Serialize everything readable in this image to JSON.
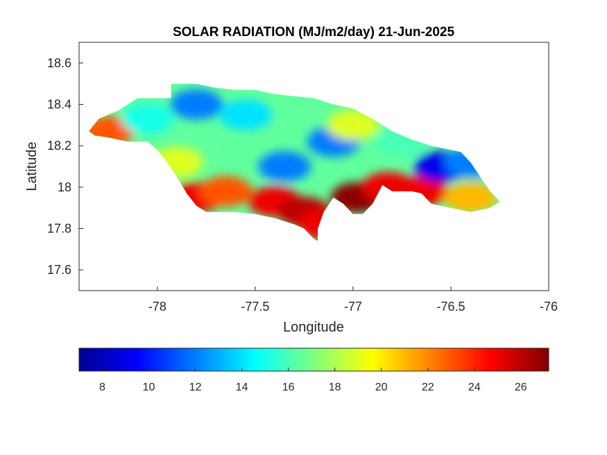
{
  "chart_data": {
    "type": "heatmap",
    "title": "SOLAR RADIATION (MJ/m2/day) 21-Jun-2025",
    "xlabel": "Longitude",
    "ylabel": "Latitude",
    "xlim": [
      -78.4,
      -76.0
    ],
    "ylim": [
      17.5,
      18.7
    ],
    "xticks": [
      -78,
      -77.5,
      -77,
      -76.5,
      -76
    ],
    "yticks": [
      17.6,
      17.8,
      18,
      18.2,
      18.4,
      18.6
    ],
    "grid": false,
    "colormap": "jet",
    "colorbar": {
      "location": "below",
      "limits": [
        7,
        27.2
      ],
      "ticks": [
        8,
        10,
        12,
        14,
        16,
        18,
        20,
        22,
        24,
        26
      ],
      "colors": [
        "#00008f",
        "#0000ff",
        "#00ffff",
        "#ffff00",
        "#ff0000",
        "#800000"
      ]
    },
    "region_outline": [
      [
        -78.35,
        18.27
      ],
      [
        -78.3,
        18.33
      ],
      [
        -78.25,
        18.35
      ],
      [
        -78.2,
        18.37
      ],
      [
        -78.1,
        18.43
      ],
      [
        -78.0,
        18.43
      ],
      [
        -77.93,
        18.43
      ],
      [
        -77.93,
        18.5
      ],
      [
        -77.8,
        18.5
      ],
      [
        -77.7,
        18.48
      ],
      [
        -77.6,
        18.47
      ],
      [
        -77.5,
        18.47
      ],
      [
        -77.4,
        18.45
      ],
      [
        -77.3,
        18.44
      ],
      [
        -77.2,
        18.43
      ],
      [
        -77.1,
        18.4
      ],
      [
        -77.0,
        18.38
      ],
      [
        -76.9,
        18.33
      ],
      [
        -76.8,
        18.27
      ],
      [
        -76.7,
        18.23
      ],
      [
        -76.6,
        18.2
      ],
      [
        -76.5,
        18.18
      ],
      [
        -76.45,
        18.17
      ],
      [
        -76.4,
        18.12
      ],
      [
        -76.35,
        18.05
      ],
      [
        -76.3,
        17.98
      ],
      [
        -76.25,
        17.93
      ],
      [
        -76.3,
        17.9
      ],
      [
        -76.4,
        17.88
      ],
      [
        -76.5,
        17.9
      ],
      [
        -76.6,
        17.92
      ],
      [
        -76.65,
        17.97
      ],
      [
        -76.7,
        17.98
      ],
      [
        -76.8,
        17.98
      ],
      [
        -76.85,
        18.01
      ],
      [
        -76.9,
        17.92
      ],
      [
        -76.95,
        17.87
      ],
      [
        -77.0,
        17.87
      ],
      [
        -77.05,
        17.92
      ],
      [
        -77.1,
        17.95
      ],
      [
        -77.15,
        17.88
      ],
      [
        -77.18,
        17.8
      ],
      [
        -77.18,
        17.74
      ],
      [
        -77.2,
        17.75
      ],
      [
        -77.25,
        17.8
      ],
      [
        -77.3,
        17.82
      ],
      [
        -77.4,
        17.85
      ],
      [
        -77.5,
        17.87
      ],
      [
        -77.6,
        17.88
      ],
      [
        -77.7,
        17.88
      ],
      [
        -77.75,
        17.88
      ],
      [
        -77.8,
        17.91
      ],
      [
        -77.85,
        17.97
      ],
      [
        -77.9,
        18.05
      ],
      [
        -77.95,
        18.12
      ],
      [
        -78.0,
        18.18
      ],
      [
        -78.05,
        18.22
      ],
      [
        -78.15,
        18.22
      ],
      [
        -78.25,
        18.24
      ],
      [
        -78.32,
        18.25
      ]
    ],
    "hotspots": [
      {
        "lon": -77.4,
        "lat": 17.93,
        "value": 25
      },
      {
        "lon": -77.25,
        "lat": 17.88,
        "value": 26
      },
      {
        "lon": -77.15,
        "lat": 17.82,
        "value": 25
      },
      {
        "lon": -76.98,
        "lat": 17.95,
        "value": 27
      },
      {
        "lon": -76.82,
        "lat": 18.0,
        "value": 25
      },
      {
        "lon": -76.65,
        "lat": 17.98,
        "value": 25
      },
      {
        "lon": -77.8,
        "lat": 17.95,
        "value": 25
      },
      {
        "lon": -77.65,
        "lat": 17.98,
        "value": 23
      },
      {
        "lon": -78.25,
        "lat": 18.27,
        "value": 23
      },
      {
        "lon": -76.55,
        "lat": 18.1,
        "value": 9
      },
      {
        "lon": -76.4,
        "lat": 18.12,
        "value": 12
      },
      {
        "lon": -77.1,
        "lat": 18.22,
        "value": 12
      },
      {
        "lon": -77.35,
        "lat": 18.1,
        "value": 12
      },
      {
        "lon": -77.8,
        "lat": 18.4,
        "value": 12
      },
      {
        "lon": -77.55,
        "lat": 18.35,
        "value": 14
      },
      {
        "lon": -77.0,
        "lat": 18.3,
        "value": 19
      },
      {
        "lon": -76.75,
        "lat": 18.22,
        "value": 16
      },
      {
        "lon": -78.05,
        "lat": 18.33,
        "value": 15
      },
      {
        "lon": -77.9,
        "lat": 18.12,
        "value": 19
      },
      {
        "lon": -76.4,
        "lat": 17.95,
        "value": 21
      }
    ],
    "background_value": 16.5
  }
}
